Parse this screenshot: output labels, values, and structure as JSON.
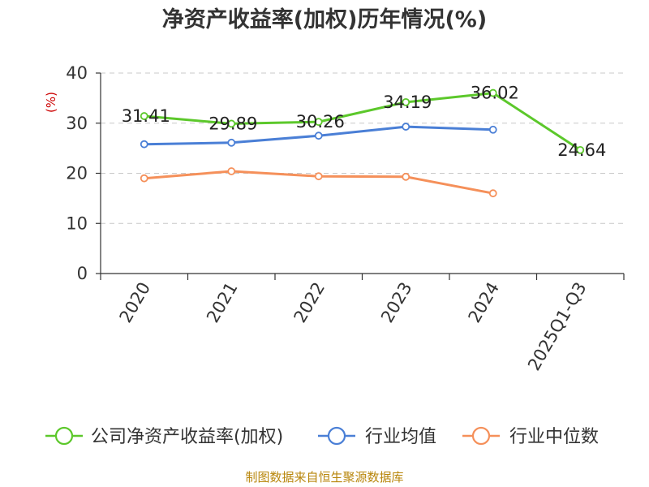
{
  "chart_data": {
    "type": "line",
    "title": "净资产收益率(加权)历年情况(%)",
    "ylabel": "(%)",
    "xlabel": "",
    "ylim": [
      0,
      40
    ],
    "yticks": [
      0,
      10,
      20,
      30,
      40
    ],
    "grid": true,
    "categories": [
      "2020",
      "2021",
      "2022",
      "2023",
      "2024",
      "2025Q1-Q3"
    ],
    "series": [
      {
        "name": "公司净资产收益率(加权)",
        "color": "#5cc82b",
        "values": [
          31.41,
          29.89,
          30.26,
          34.19,
          36.02,
          24.64
        ],
        "labels": [
          "31.41",
          "29.89",
          "30.26",
          "34.19",
          "36.02",
          "24.64"
        ]
      },
      {
        "name": "行业均值",
        "color": "#4a7fd6",
        "values": [
          25.8,
          26.1,
          27.5,
          29.3,
          28.7,
          null
        ]
      },
      {
        "name": "行业中位数",
        "color": "#f5905a",
        "values": [
          19.0,
          20.4,
          19.4,
          19.3,
          16.0,
          null
        ]
      }
    ],
    "legend_position": "bottom"
  },
  "source_text": "制图数据来自恒生聚源数据库"
}
